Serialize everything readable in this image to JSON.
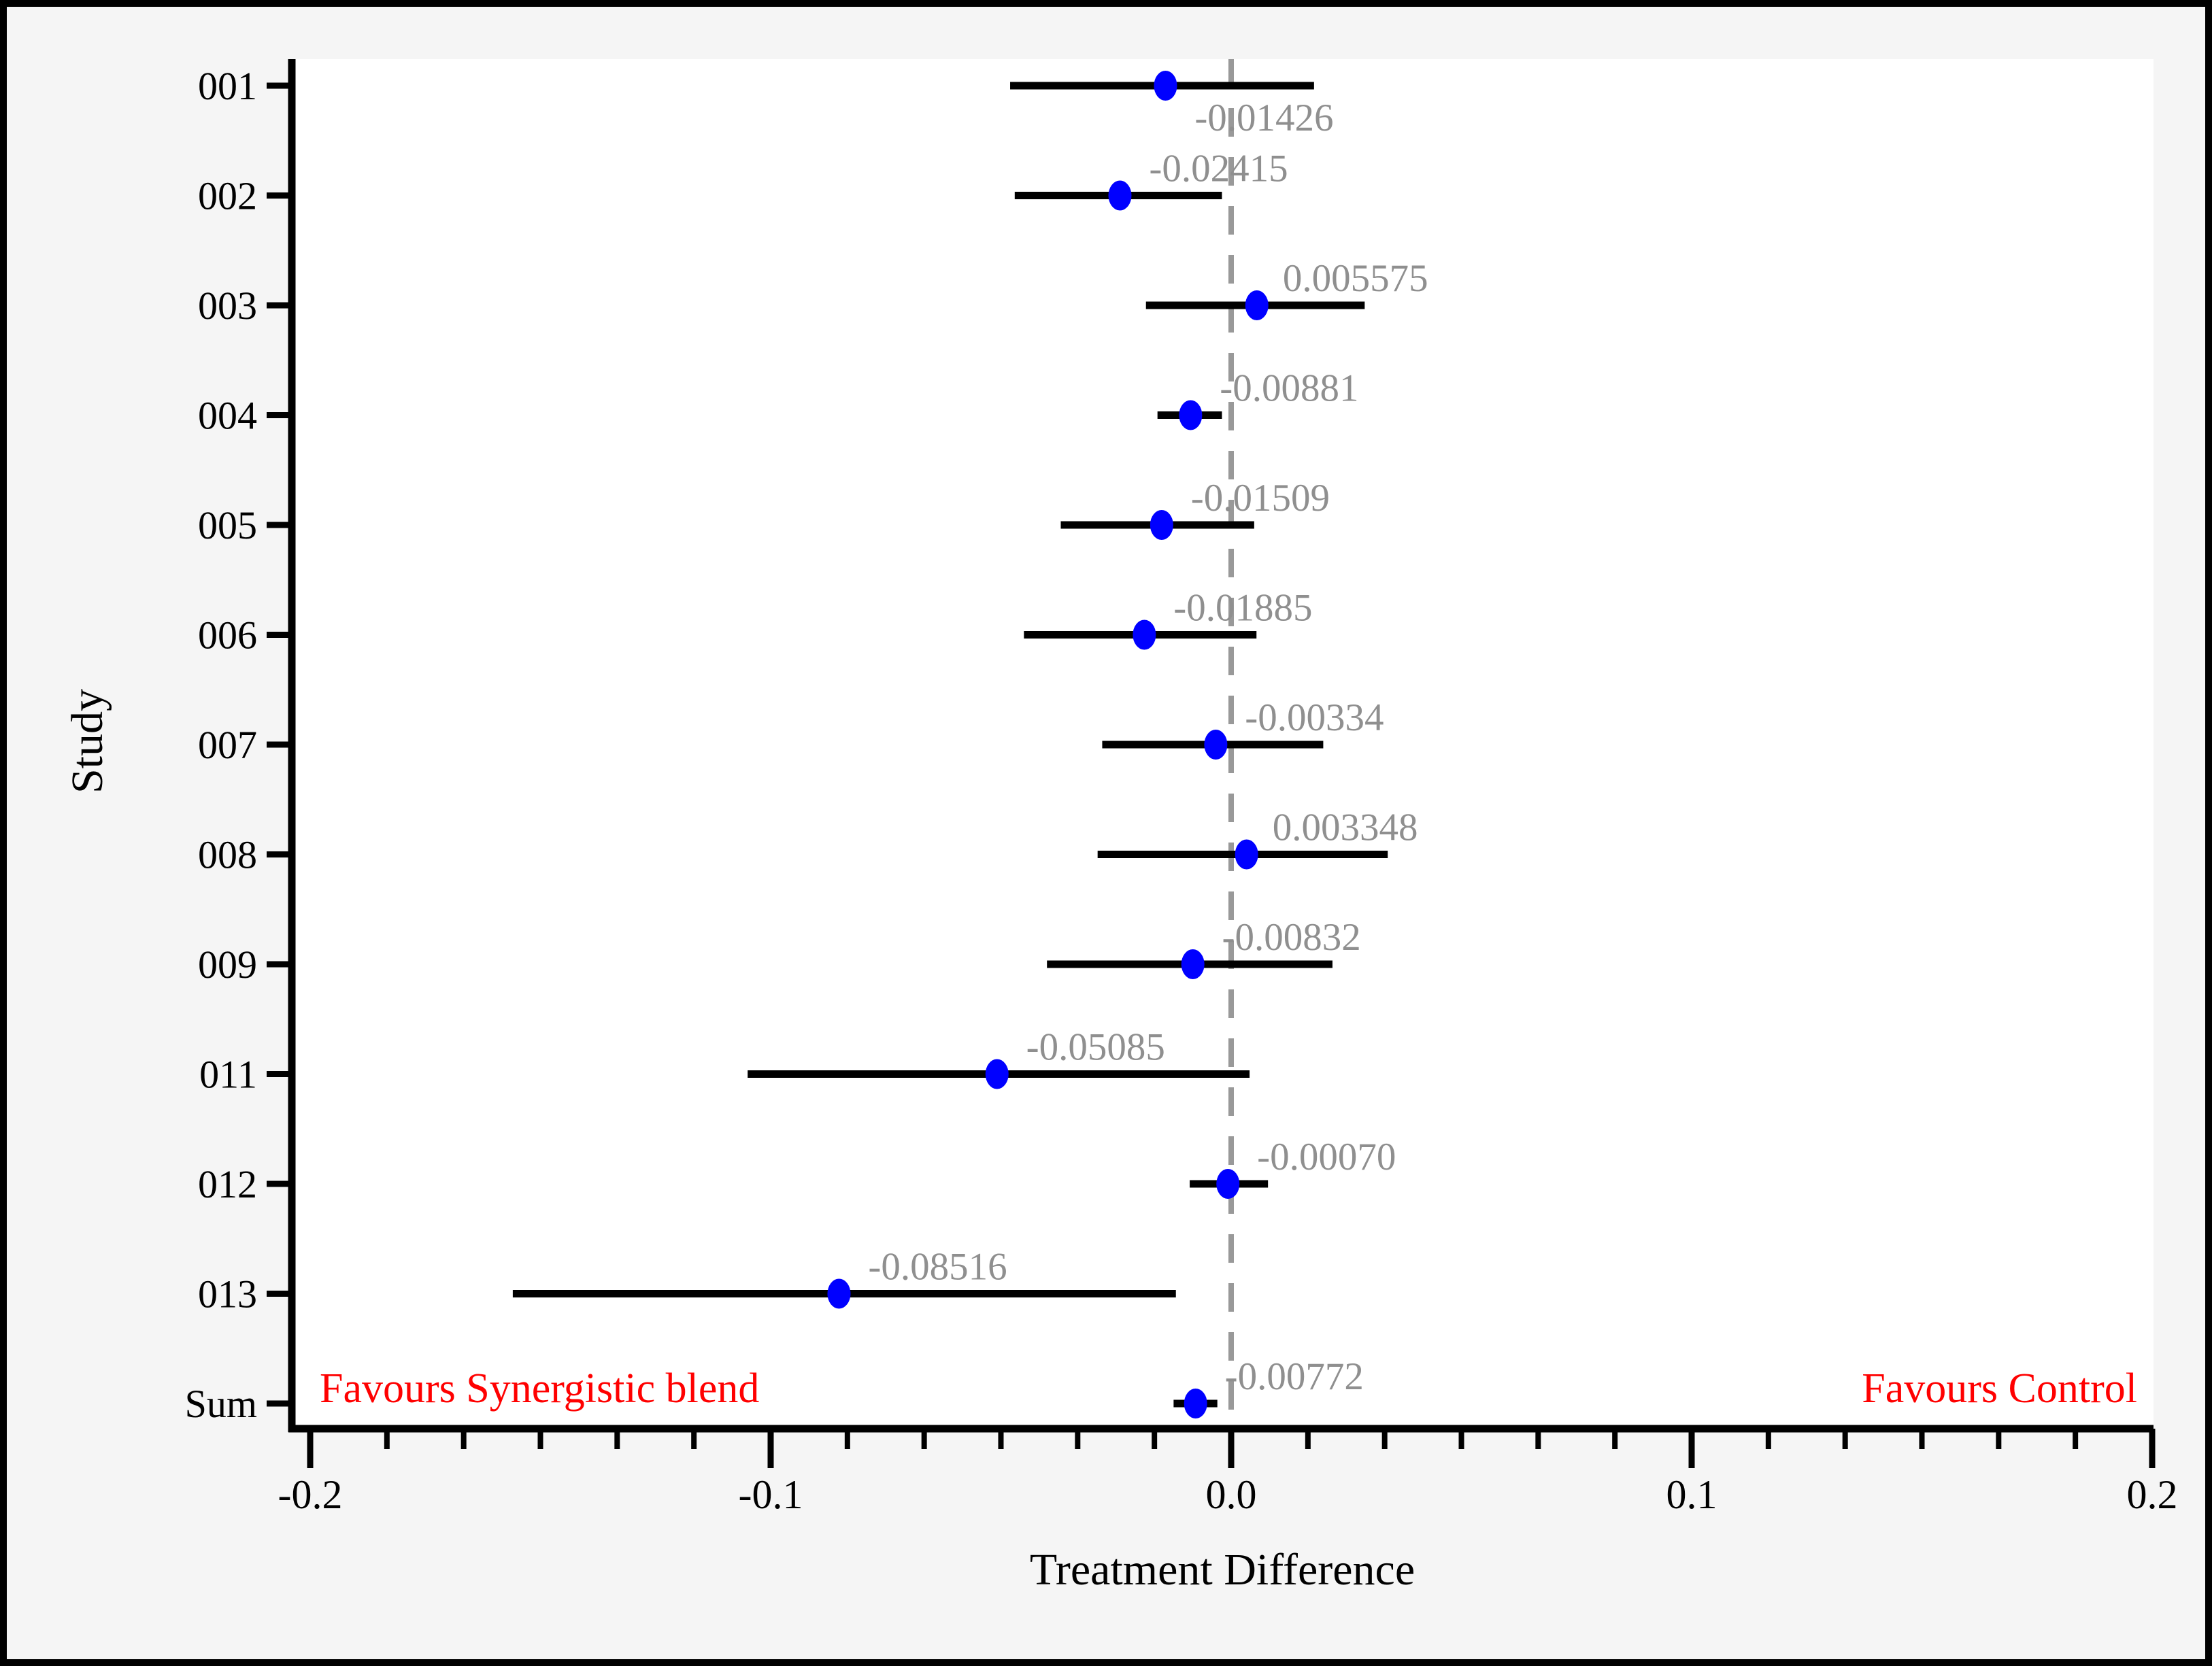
{
  "colors": {
    "background": "#f5f5f5",
    "plot_background": "#ffffff",
    "border": "#000000",
    "axis_line": "#000000",
    "axis_text": "#000000",
    "ci_line": "#000000",
    "marker": "#0000ff",
    "value_label": "#8f8f8f",
    "zero_line": "#999999",
    "favours_text": "#ff0000"
  },
  "chart_data": {
    "type": "scatter",
    "subtype": "forest-plot",
    "title": "",
    "xlabel": "Treatment Difference",
    "ylabel": "Study",
    "xlim": [
      -0.2,
      0.2
    ],
    "x_major_ticks": [
      -0.2,
      -0.1,
      0.0,
      0.1,
      0.2
    ],
    "x_tick_labels": [
      "-0.2",
      "-0.1",
      "0.0",
      "0.1",
      "0.2"
    ],
    "x_minor_divisions_per_major": 6,
    "grid": "off",
    "legend": "none",
    "zero_reference_line": 0,
    "categories": [
      "001",
      "002",
      "003",
      "004",
      "005",
      "006",
      "007",
      "008",
      "009",
      "011",
      "012",
      "013",
      "Sum"
    ],
    "series": [
      {
        "study": "001",
        "estimate": -0.01426,
        "label": "-0.01426",
        "ci_lower": -0.048,
        "ci_upper": 0.018,
        "label_side": "below"
      },
      {
        "study": "002",
        "estimate": -0.02415,
        "label": "-0.02415",
        "ci_lower": -0.047,
        "ci_upper": -0.002,
        "label_side": "above"
      },
      {
        "study": "003",
        "estimate": 0.005575,
        "label": "0.005575",
        "ci_lower": -0.0185,
        "ci_upper": 0.029,
        "label_side": "above"
      },
      {
        "study": "004",
        "estimate": -0.00881,
        "label": "-0.00881",
        "ci_lower": -0.016,
        "ci_upper": -0.002,
        "label_side": "above"
      },
      {
        "study": "005",
        "estimate": -0.01509,
        "label": "-0.01509",
        "ci_lower": -0.037,
        "ci_upper": 0.005,
        "label_side": "above"
      },
      {
        "study": "006",
        "estimate": -0.01885,
        "label": "-0.01885",
        "ci_lower": -0.045,
        "ci_upper": 0.0055,
        "label_side": "above"
      },
      {
        "study": "007",
        "estimate": -0.00334,
        "label": "-0.00334",
        "ci_lower": -0.028,
        "ci_upper": 0.02,
        "label_side": "above"
      },
      {
        "study": "008",
        "estimate": 0.003348,
        "label": "0.003348",
        "ci_lower": -0.029,
        "ci_upper": 0.034,
        "label_side": "above"
      },
      {
        "study": "009",
        "estimate": -0.00832,
        "label": "-0.00832",
        "ci_lower": -0.04,
        "ci_upper": 0.022,
        "label_side": "above"
      },
      {
        "study": "011",
        "estimate": -0.05085,
        "label": "-0.05085",
        "ci_lower": -0.105,
        "ci_upper": 0.004,
        "label_side": "above"
      },
      {
        "study": "012",
        "estimate": -0.0007,
        "label": "-0.00070",
        "ci_lower": -0.009,
        "ci_upper": 0.008,
        "label_side": "above"
      },
      {
        "study": "013",
        "estimate": -0.08516,
        "label": "-0.08516",
        "ci_lower": -0.156,
        "ci_upper": -0.012,
        "label_side": "above"
      },
      {
        "study": "Sum",
        "estimate": -0.00772,
        "label": "-0.00772",
        "ci_lower": -0.0125,
        "ci_upper": -0.003,
        "label_side": "above"
      }
    ],
    "annotations": {
      "left": "Favours Synergistic blend",
      "right": "Favours Control"
    }
  }
}
